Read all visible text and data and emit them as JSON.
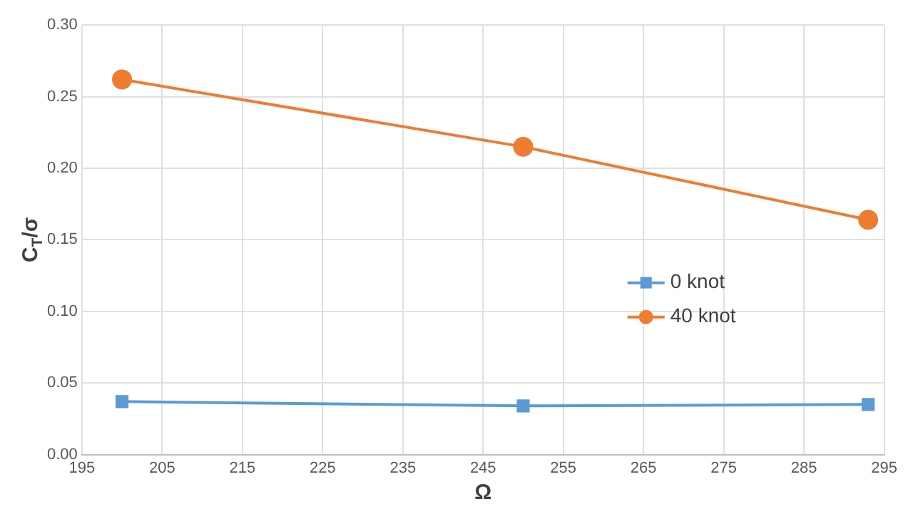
{
  "chart_data": {
    "type": "line",
    "xlabel": "Ω",
    "ylabel": "C$_{T}$/σ",
    "x": [
      200,
      250,
      293
    ],
    "series": [
      {
        "name": "0 knot",
        "color": "#5b9bd5",
        "values": [
          0.037,
          0.034,
          0.035
        ],
        "marker": "square"
      },
      {
        "name": "40 knot",
        "color": "#ed7d31",
        "values": [
          0.262,
          0.215,
          0.164
        ],
        "marker": "circle"
      }
    ],
    "xlim": [
      195,
      295
    ],
    "xticks": [
      195,
      205,
      215,
      225,
      235,
      245,
      255,
      265,
      275,
      285,
      295
    ],
    "ylim": [
      0,
      0.3
    ],
    "yticks": [
      {
        "value": 0,
        "label": "0.00"
      },
      {
        "value": 0.05,
        "label": "0.05"
      },
      {
        "value": 0.1,
        "label": "0.10"
      },
      {
        "value": 0.15,
        "label": "0.15"
      },
      {
        "value": 0.2,
        "label": "0.20"
      },
      {
        "value": 0.25,
        "label": "0.25"
      },
      {
        "value": 0.3,
        "label": "0.30"
      }
    ],
    "grid": true,
    "legend": "right",
    "line_style": "solid"
  }
}
